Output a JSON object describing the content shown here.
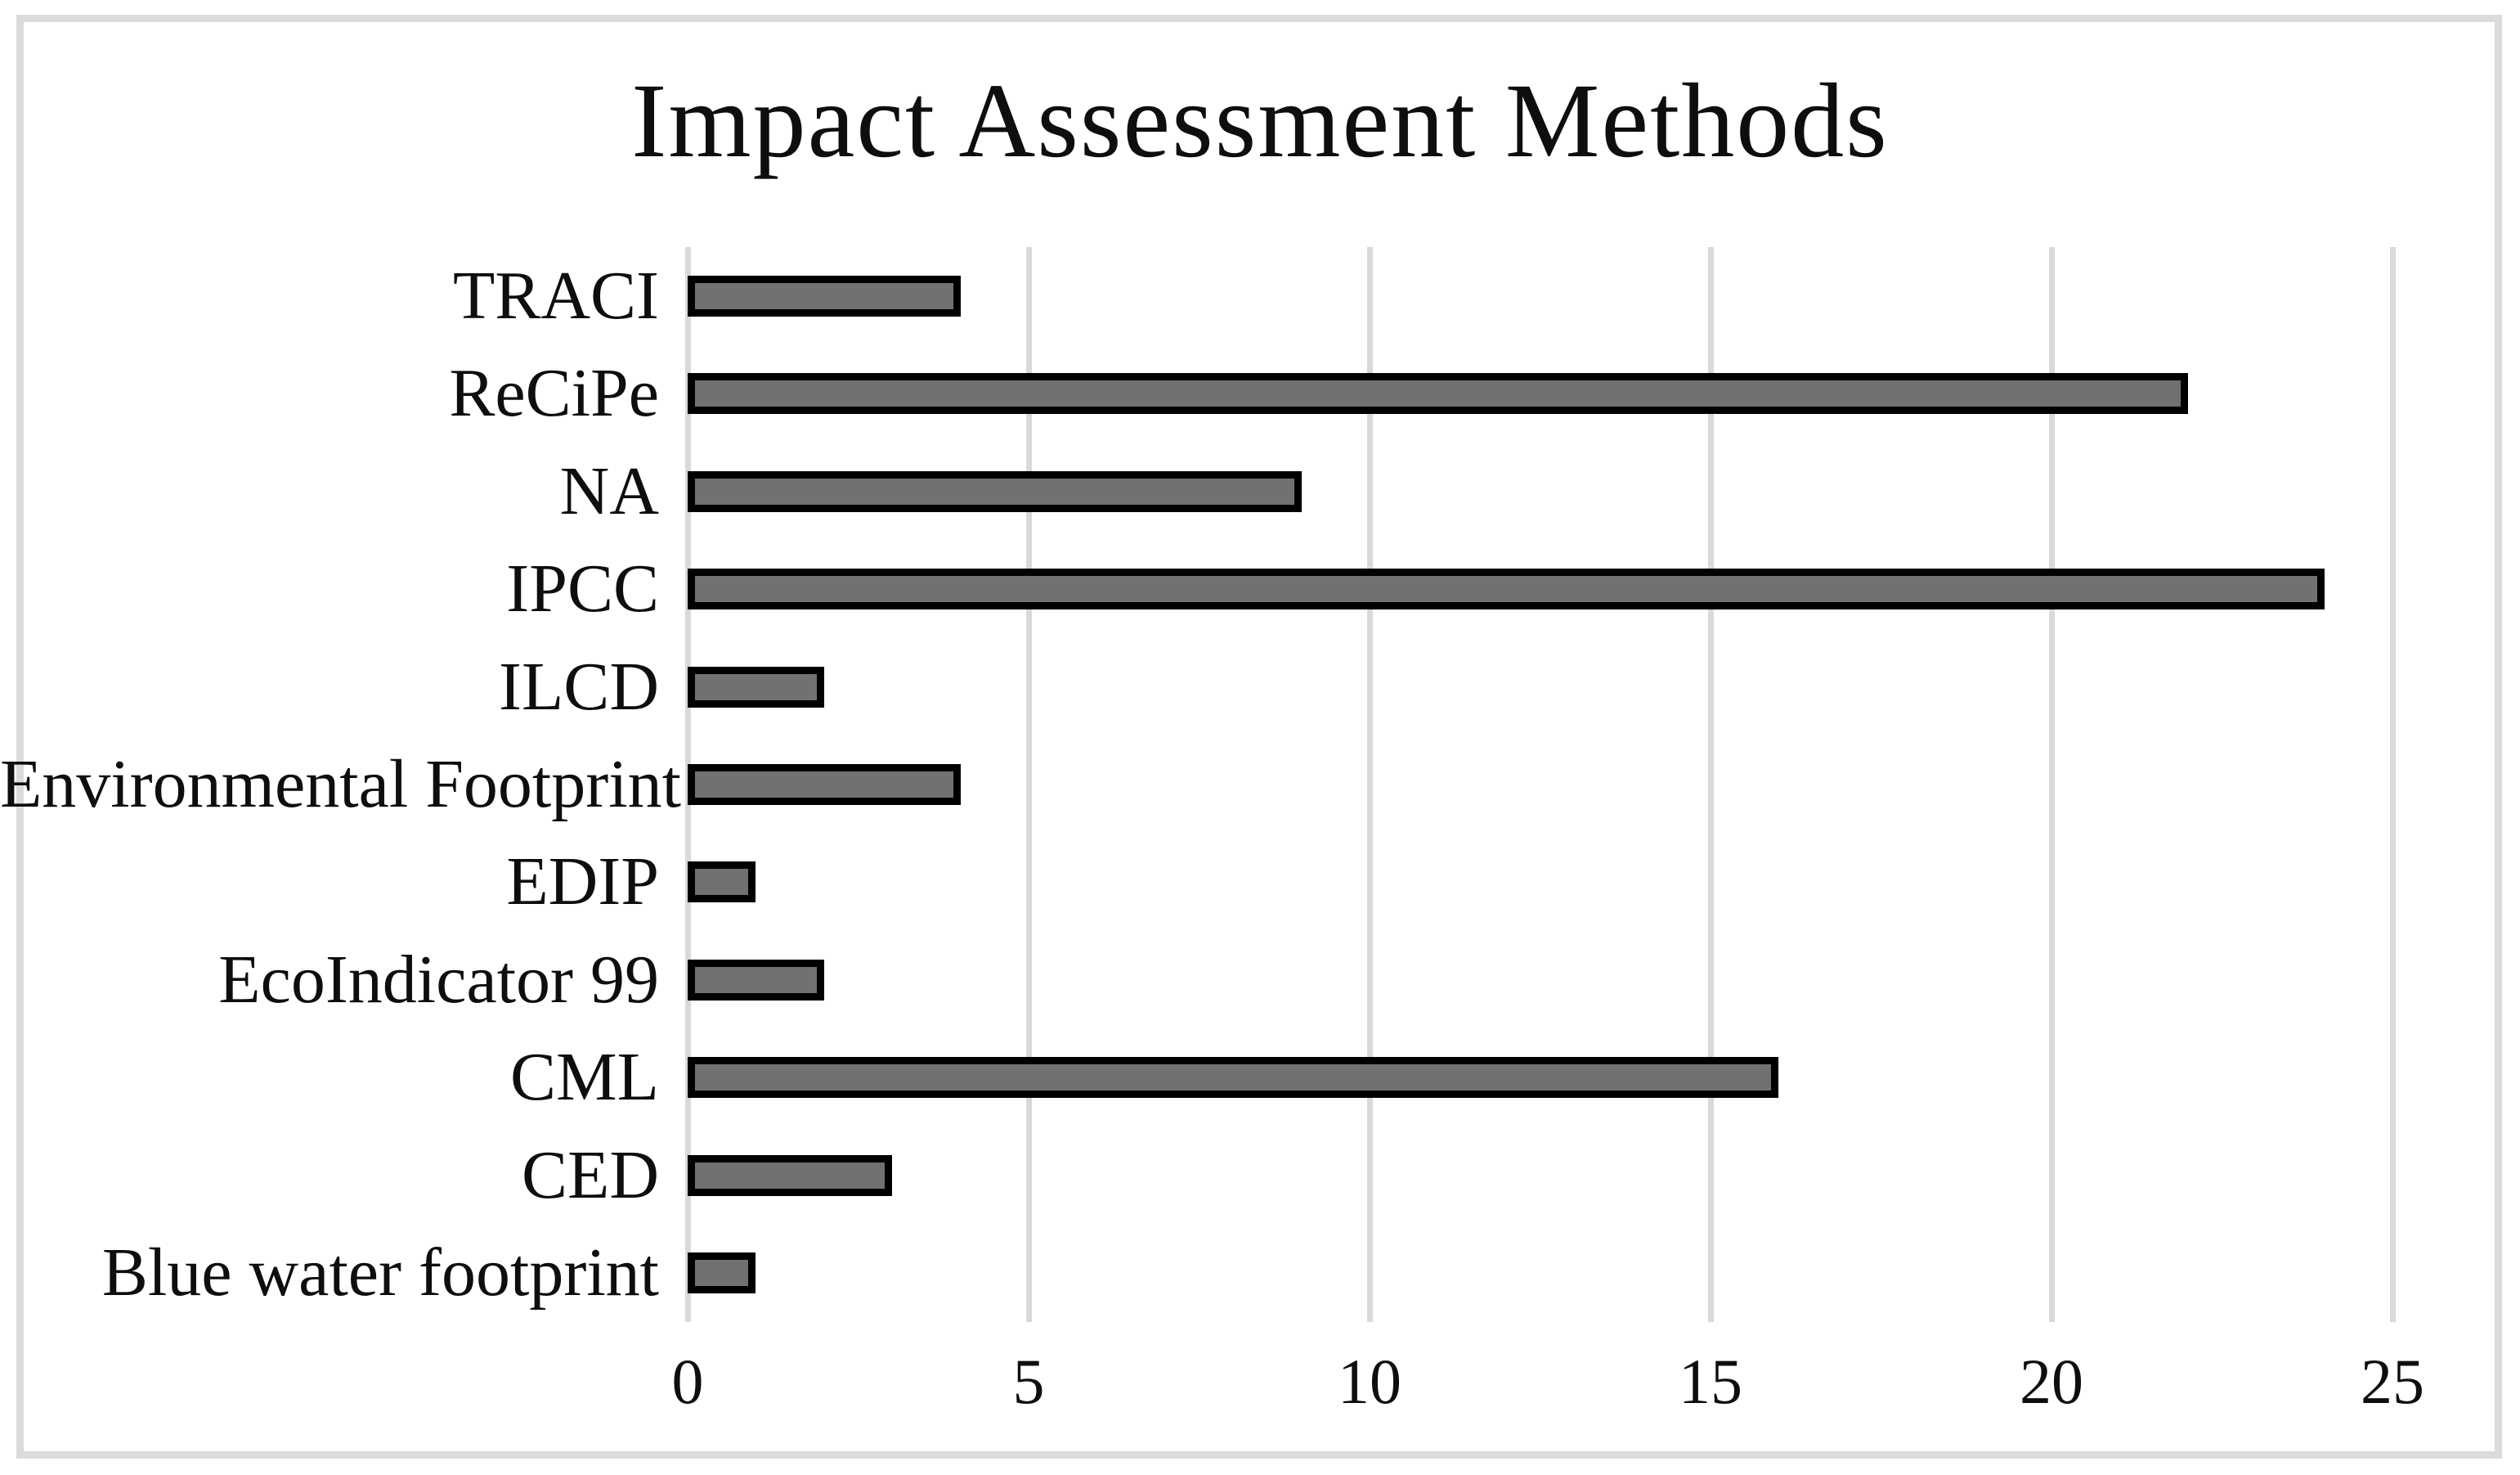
{
  "chart_data": {
    "type": "bar",
    "orientation": "horizontal",
    "title": "Impact Assessment Methods",
    "categories": [
      "TRACI",
      "ReCiPe",
      "NA",
      "IPCC",
      "ILCD",
      "Environmental Footprint",
      "EDIP",
      "EcoIndicator 99",
      "CML",
      "CED",
      "Blue water footprint"
    ],
    "values": [
      4,
      22,
      9,
      24,
      2,
      4,
      1,
      2,
      16,
      3,
      1
    ],
    "xlabel": "",
    "ylabel": "",
    "xlim": [
      0,
      25
    ],
    "xticks": [
      0,
      5,
      10,
      15,
      20,
      25
    ],
    "grid": "vertical-only",
    "legend": "none",
    "colors": {
      "bar_fill": "#737070",
      "bar_border": "#000000",
      "gridline": "#d9d9d9",
      "frame_border": "#dbdbdb",
      "text": "#0e0e0e",
      "background": "#ffffff"
    }
  }
}
